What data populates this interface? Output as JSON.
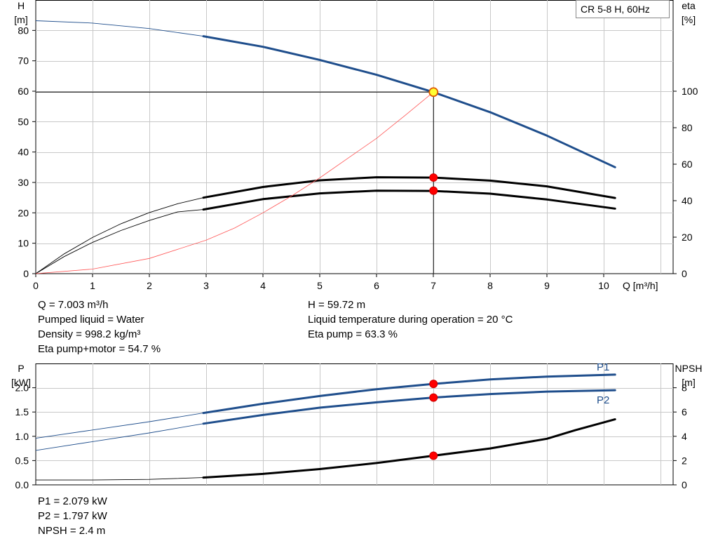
{
  "chart_data": [
    {
      "type": "line",
      "title": "CR 5-8 H, 60Hz",
      "xlabel": "Q [m³/h]",
      "ylabel": [
        "H",
        "[m]"
      ],
      "y2label": [
        "eta",
        "[%]"
      ],
      "xlim": [
        0,
        11
      ],
      "ylim": [
        0,
        90
      ],
      "y2lim": [
        0,
        150
      ],
      "grid": true,
      "x_ticks": [
        "0",
        "1",
        "2",
        "3",
        "4",
        "5",
        "6",
        "7",
        "8",
        "9",
        "10"
      ],
      "y_ticks": [
        "0",
        "10",
        "20",
        "30",
        "40",
        "50",
        "60",
        "70",
        "80"
      ],
      "y2_ticks": [
        "0",
        "20",
        "40",
        "60",
        "80",
        "100"
      ],
      "series": [
        {
          "axis": "left",
          "color": "#1f4e8c",
          "thin": [
            [
              0,
              83.2
            ],
            [
              1,
              82.4
            ],
            [
              2,
              80.6
            ],
            [
              2.95,
              78.1
            ]
          ],
          "thick": [
            [
              2.95,
              78.1
            ],
            [
              4,
              74.6
            ],
            [
              5,
              70.3
            ],
            [
              6,
              65.4
            ],
            [
              7,
              59.7
            ],
            [
              8,
              53.1
            ],
            [
              9,
              45.4
            ],
            [
              10.2,
              35.0
            ]
          ]
        },
        {
          "axis": "left",
          "color": "#000000",
          "thin": [
            [
              0,
              0
            ],
            [
              0.5,
              5.6
            ],
            [
              1,
              10.3
            ],
            [
              1.5,
              14.2
            ],
            [
              2,
              17.5
            ],
            [
              2.5,
              20.3
            ],
            [
              2.95,
              21.1
            ]
          ],
          "thick": [
            [
              2.95,
              21.1
            ],
            [
              4,
              24.5
            ],
            [
              5,
              26.4
            ],
            [
              6,
              27.3
            ],
            [
              7,
              27.2
            ],
            [
              8,
              26.3
            ],
            [
              9,
              24.4
            ],
            [
              10.2,
              21.4
            ]
          ]
        },
        {
          "axis": "left",
          "color": "#000000",
          "thin": [
            [
              0,
              0
            ],
            [
              0.5,
              6.5
            ],
            [
              1,
              11.9
            ],
            [
              1.5,
              16.4
            ],
            [
              2,
              20.1
            ],
            [
              2.5,
              23.0
            ],
            [
              2.95,
              25.0
            ]
          ],
          "thick": [
            [
              2.95,
              25.0
            ],
            [
              4,
              28.5
            ],
            [
              5,
              30.7
            ],
            [
              6,
              31.7
            ],
            [
              7,
              31.6
            ],
            [
              8,
              30.6
            ],
            [
              9,
              28.7
            ],
            [
              10.2,
              24.9
            ]
          ]
        },
        {
          "axis": "left",
          "color": "#ff5555",
          "thin": [
            [
              0,
              0
            ],
            [
              1,
              1.5
            ],
            [
              2,
              5.0
            ],
            [
              3,
              11.0
            ],
            [
              3.5,
              15.0
            ],
            [
              4,
              20.0
            ],
            [
              4.5,
              25.5
            ],
            [
              5,
              31.5
            ],
            [
              5.5,
              38.0
            ],
            [
              6,
              44.5
            ],
            [
              6.5,
              52.0
            ],
            [
              7,
              59.7
            ]
          ],
          "thick": []
        }
      ],
      "crosshair": {
        "x": 7.003,
        "y": 59.72
      },
      "markers": [
        [
          7.003,
          59.72,
          "yellow"
        ],
        [
          7.003,
          31.6,
          "red"
        ],
        [
          7.003,
          27.3,
          "red"
        ]
      ]
    },
    {
      "type": "line",
      "ylabel": [
        "P",
        "[kW]"
      ],
      "y2label": [
        "NPSH",
        "[m]"
      ],
      "xlim": [
        0,
        11
      ],
      "ylim": [
        0,
        2.5
      ],
      "y2lim": [
        0,
        10
      ],
      "grid": true,
      "y_ticks": [
        "0.0",
        "0.5",
        "1.0",
        "1.5",
        "2.0"
      ],
      "y2_ticks": [
        "0",
        "2",
        "4",
        "6",
        "8"
      ],
      "series": [
        {
          "name": "P1",
          "axis": "left",
          "color": "#1f4e8c",
          "thin": [
            [
              0,
              0.96
            ],
            [
              1,
              1.13
            ],
            [
              2,
              1.3
            ],
            [
              2.95,
              1.48
            ]
          ],
          "thick": [
            [
              2.95,
              1.48
            ],
            [
              4,
              1.67
            ],
            [
              5,
              1.83
            ],
            [
              6,
              1.97
            ],
            [
              7,
              2.079
            ],
            [
              8,
              2.17
            ],
            [
              9,
              2.23
            ],
            [
              10.2,
              2.27
            ]
          ]
        },
        {
          "name": "P2",
          "axis": "left",
          "color": "#1f4e8c",
          "thin": [
            [
              0,
              0.71
            ],
            [
              1,
              0.89
            ],
            [
              2,
              1.07
            ],
            [
              2.95,
              1.26
            ]
          ],
          "thick": [
            [
              2.95,
              1.26
            ],
            [
              4,
              1.44
            ],
            [
              5,
              1.59
            ],
            [
              6,
              1.7
            ],
            [
              7,
              1.797
            ],
            [
              8,
              1.87
            ],
            [
              9,
              1.92
            ],
            [
              10.2,
              1.95
            ]
          ]
        },
        {
          "axis": "right",
          "color": "#000000",
          "thin": [
            [
              0,
              0.4
            ],
            [
              1,
              0.4
            ],
            [
              2,
              0.45
            ],
            [
              2.95,
              0.6
            ]
          ],
          "thick": [
            [
              2.95,
              0.6
            ],
            [
              4,
              0.9
            ],
            [
              5,
              1.3
            ],
            [
              6,
              1.8
            ],
            [
              7,
              2.4
            ],
            [
              8,
              3.0
            ],
            [
              9,
              3.8
            ],
            [
              9.5,
              4.5
            ],
            [
              10.2,
              5.4
            ]
          ]
        }
      ],
      "series_labels": [
        "P1",
        "P2"
      ],
      "markers": [
        [
          7.003,
          2.079,
          "red",
          "left"
        ],
        [
          7.003,
          1.797,
          "red",
          "left"
        ],
        [
          7.003,
          2.4,
          "red",
          "right"
        ]
      ]
    }
  ],
  "info": {
    "left": [
      "Q = 7.003 m³/h",
      "Pumped liquid = Water",
      "Density = 998.2 kg/m³",
      "Eta pump+motor = 54.7 %"
    ],
    "right": [
      "H = 59.72 m",
      "Liquid temperature during operation = 20 °C",
      "Eta pump = 63.3 %"
    ],
    "bottom": [
      "P1 = 2.079 kW",
      "P2 = 1.797 kW",
      "NPSH = 2.4 m"
    ]
  }
}
